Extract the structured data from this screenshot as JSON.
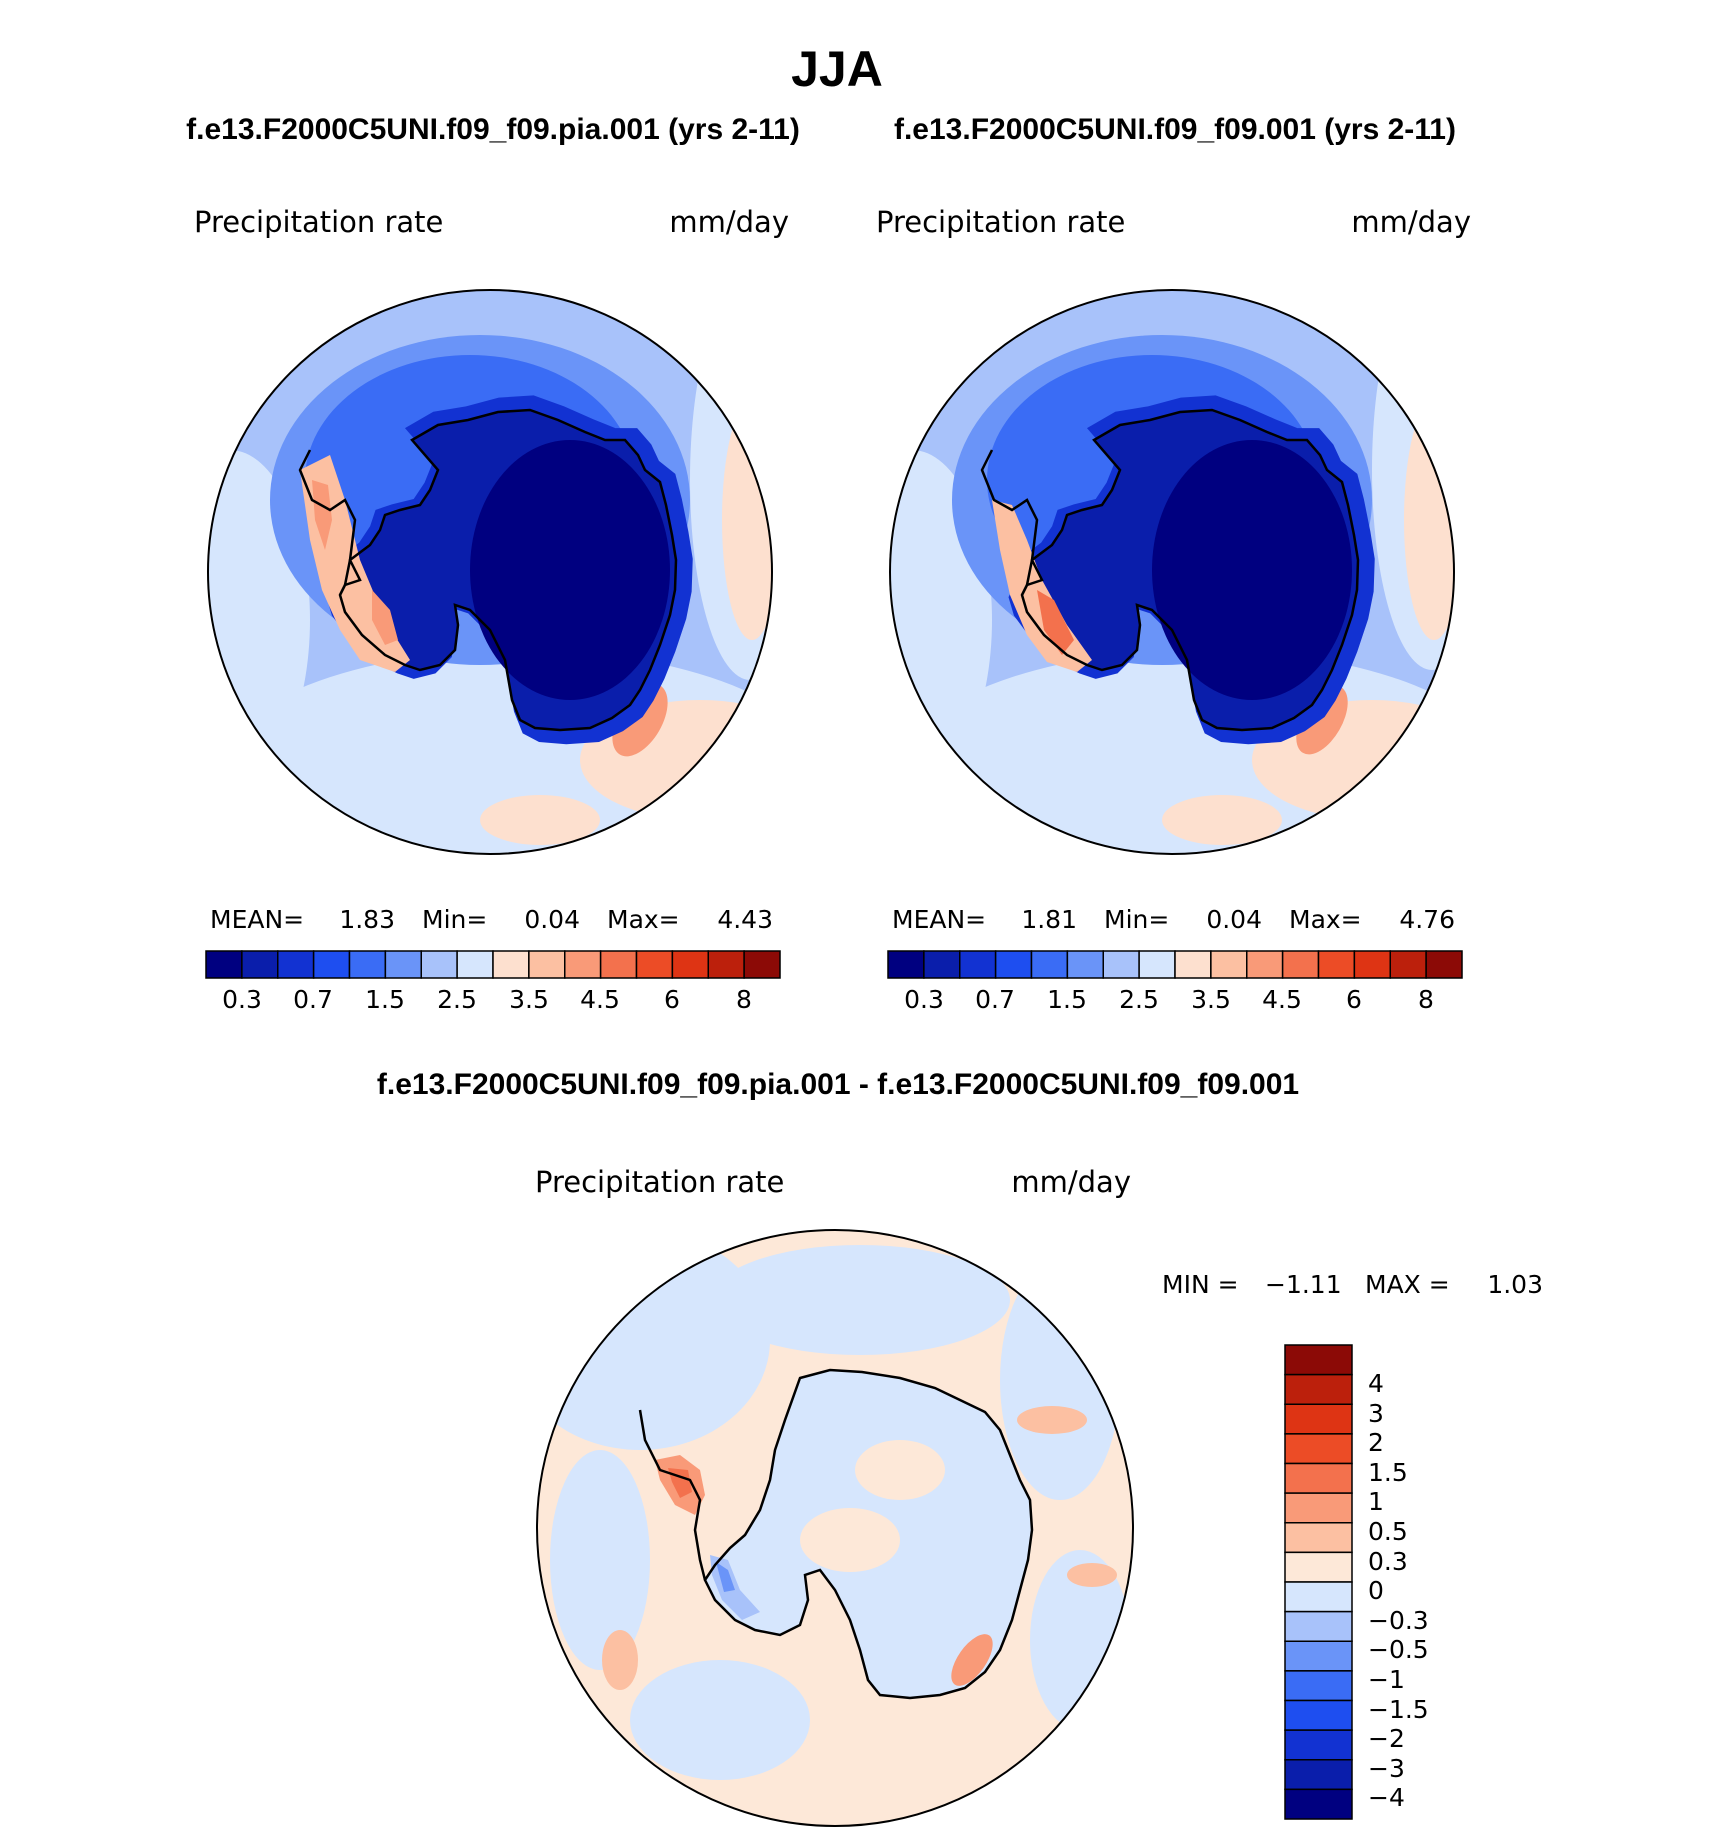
{
  "title": "JJA",
  "colors": {
    "mean_scale": [
      "#000080",
      "#0a1eab",
      "#1232d2",
      "#1e4ef0",
      "#3a6cf5",
      "#6a94f8",
      "#a8c2fa",
      "#d6e6fd",
      "#fde0cf",
      "#fcc0a2",
      "#f99a78",
      "#f3714d",
      "#ec4c26",
      "#de3414",
      "#bc200c",
      "#8c0a06"
    ],
    "diff_scale": [
      "#000080",
      "#0a1eab",
      "#1232d2",
      "#1e4ef0",
      "#3a6cf5",
      "#6a94f8",
      "#a8c2fa",
      "#d6e6fd",
      "#fde8d8",
      "#fcc0a2",
      "#f99a78",
      "#f3714d",
      "#ec4c26",
      "#de3414",
      "#bc200c",
      "#8c0a06"
    ],
    "coast": "#000000"
  },
  "panels": [
    {
      "subtitle": "f.e13.F2000C5UNI.f09_f09.pia.001 (yrs 2-11)",
      "variable": "Precipitation rate",
      "units": "mm/day",
      "stats": {
        "mean_label": "MEAN=",
        "mean": "1.83",
        "min_label": "Min=",
        "min": "0.04",
        "max_label": "Max=",
        "max": "4.43"
      },
      "colorbar_ticks": [
        "0.3",
        "0.7",
        "1.5",
        "2.5",
        "3.5",
        "4.5",
        "6",
        "8"
      ]
    },
    {
      "subtitle": "f.e13.F2000C5UNI.f09_f09.001 (yrs 2-11)",
      "variable": "Precipitation rate",
      "units": "mm/day",
      "stats": {
        "mean_label": "MEAN=",
        "mean": "1.81",
        "min_label": "Min=",
        "min": "0.04",
        "max_label": "Max=",
        "max": "4.76"
      },
      "colorbar_ticks": [
        "0.3",
        "0.7",
        "1.5",
        "2.5",
        "3.5",
        "4.5",
        "6",
        "8"
      ]
    }
  ],
  "diff": {
    "subtitle": "f.e13.F2000C5UNI.f09_f09.pia.001 - f.e13.F2000C5UNI.f09_f09.001",
    "variable": "Precipitation rate",
    "units": "mm/day",
    "min_label": "MIN =",
    "min": "−1.11",
    "max_label": "MAX =",
    "max": "1.03",
    "colorbar_ticks": [
      "4",
      "3",
      "2",
      "1.5",
      "1",
      "0.5",
      "0.3",
      "0",
      "−0.3",
      "−0.5",
      "−1",
      "−1.5",
      "−2",
      "−3",
      "−4"
    ]
  }
}
